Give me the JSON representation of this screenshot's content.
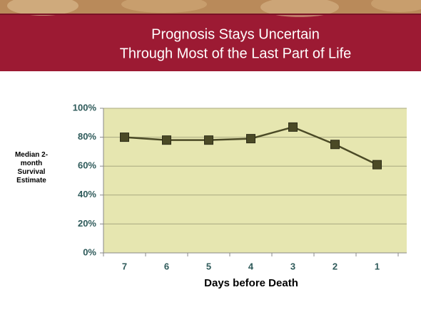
{
  "chart_data": {
    "type": "line",
    "title": [
      "Prognosis Stays Uncertain",
      "Through Most of the Last Part of Life"
    ],
    "x_label": "Days before Death",
    "y_label": "Median 2-month Survival Estimate",
    "categories": [
      "7",
      "6",
      "5",
      "4",
      "3",
      "2",
      "1"
    ],
    "values": [
      80,
      78,
      78,
      79,
      87,
      75,
      61
    ],
    "color": "#4b4a26",
    "ylim": [
      0,
      100
    ],
    "yticks": [
      {
        "value": 0,
        "label": "0%"
      },
      {
        "value": 20,
        "label": "20%"
      },
      {
        "value": 40,
        "label": "40%"
      },
      {
        "value": 60,
        "label": "60%"
      },
      {
        "value": 80,
        "label": "80%"
      },
      {
        "value": 100,
        "label": "100%"
      }
    ],
    "grid": true
  }
}
